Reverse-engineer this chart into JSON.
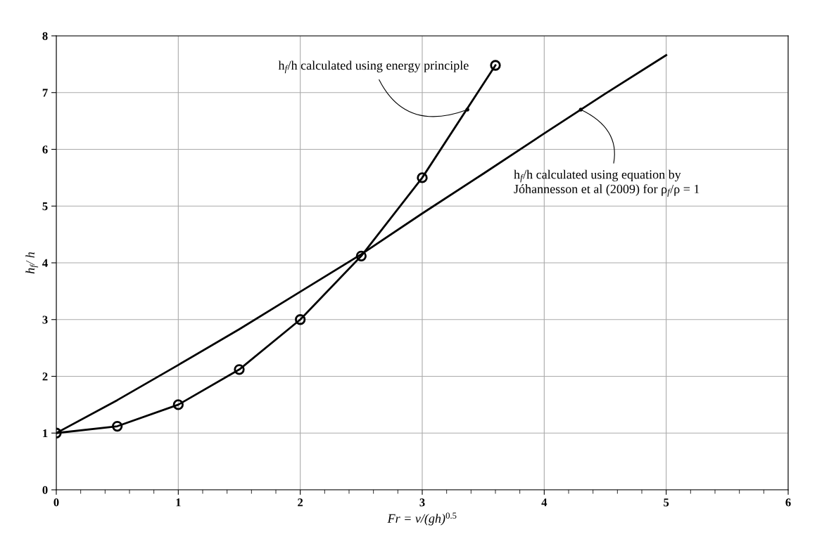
{
  "chart_data": {
    "type": "line",
    "xlabel": "Fr = v/(gh)$^{0.5}$",
    "ylabel": "h$_{f}$/ h",
    "xlim": [
      0,
      6
    ],
    "xticks": [
      0,
      1,
      2,
      3,
      4,
      5,
      6
    ],
    "ylim": [
      0,
      8
    ],
    "yticks": [
      0,
      1,
      2,
      3,
      4,
      5,
      6,
      7,
      8
    ],
    "grid": true,
    "line_style": "solid",
    "series": [
      {
        "color": "#000000",
        "marker": "circle",
        "x": [
          0,
          0.5,
          1,
          1.5,
          2,
          2.5,
          3,
          3.6
        ],
        "values": [
          1.0,
          1.12,
          1.5,
          2.12,
          3.0,
          4.12,
          5.5,
          7.48
        ]
      },
      {
        "color": "#000000",
        "marker": "none",
        "x": [
          0,
          0.5,
          1,
          1.5,
          2,
          2.5,
          3,
          3.5,
          4,
          4.5,
          5
        ],
        "values": [
          1.0,
          1.58,
          2.2,
          2.83,
          3.49,
          4.15,
          4.87,
          5.57,
          6.28,
          6.98,
          7.66
        ]
      }
    ],
    "annotations": [
      {
        "text": "h$_{f}$/h calculated using energy principle",
        "x": 3.37,
        "y": 6.7
      },
      {
        "text": "h$_{f}$/h calculated using equation by\nJóhannesson et al (2009) for ρ$_{f}$/ρ = 1",
        "x": 4.3,
        "y": 6.7
      }
    ]
  }
}
